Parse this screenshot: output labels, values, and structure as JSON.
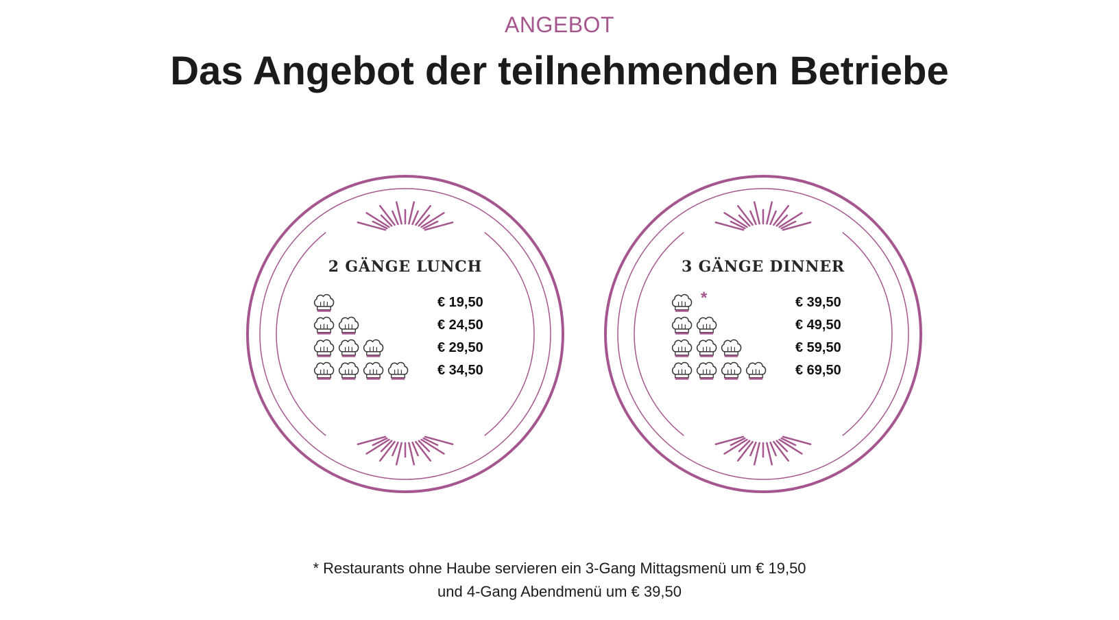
{
  "header": {
    "eyebrow": "ANGEBOT",
    "title": "Das Angebot der teilnehmenden Betriebe"
  },
  "colors": {
    "accent": "#a6568f",
    "text": "#1c1c1c"
  },
  "cards": [
    {
      "title": "2 GÄNGE LUNCH",
      "tiers": [
        {
          "hats": 1,
          "star": "",
          "price": "€ 19,50"
        },
        {
          "hats": 2,
          "star": "",
          "price": "€ 24,50"
        },
        {
          "hats": 3,
          "star": "",
          "price": "€ 29,50"
        },
        {
          "hats": 4,
          "star": "",
          "price": "€ 34,50"
        }
      ]
    },
    {
      "title": "3 GÄNGE DINNER",
      "tiers": [
        {
          "hats": 1,
          "star": "*",
          "price": "€ 39,50"
        },
        {
          "hats": 2,
          "star": "",
          "price": "€ 49,50"
        },
        {
          "hats": 3,
          "star": "",
          "price": "€ 59,50"
        },
        {
          "hats": 4,
          "star": "",
          "price": "€ 69,50"
        }
      ]
    }
  ],
  "footnote": {
    "line1": "* Restaurants ohne Haube servieren ein 3-Gang Mittagsmenü um € 19,50",
    "line2": "und 4-Gang Abendmenü um € 39,50"
  },
  "icons": {
    "hat": "chef-hat-icon",
    "rays": "sunburst-rays-icon"
  }
}
